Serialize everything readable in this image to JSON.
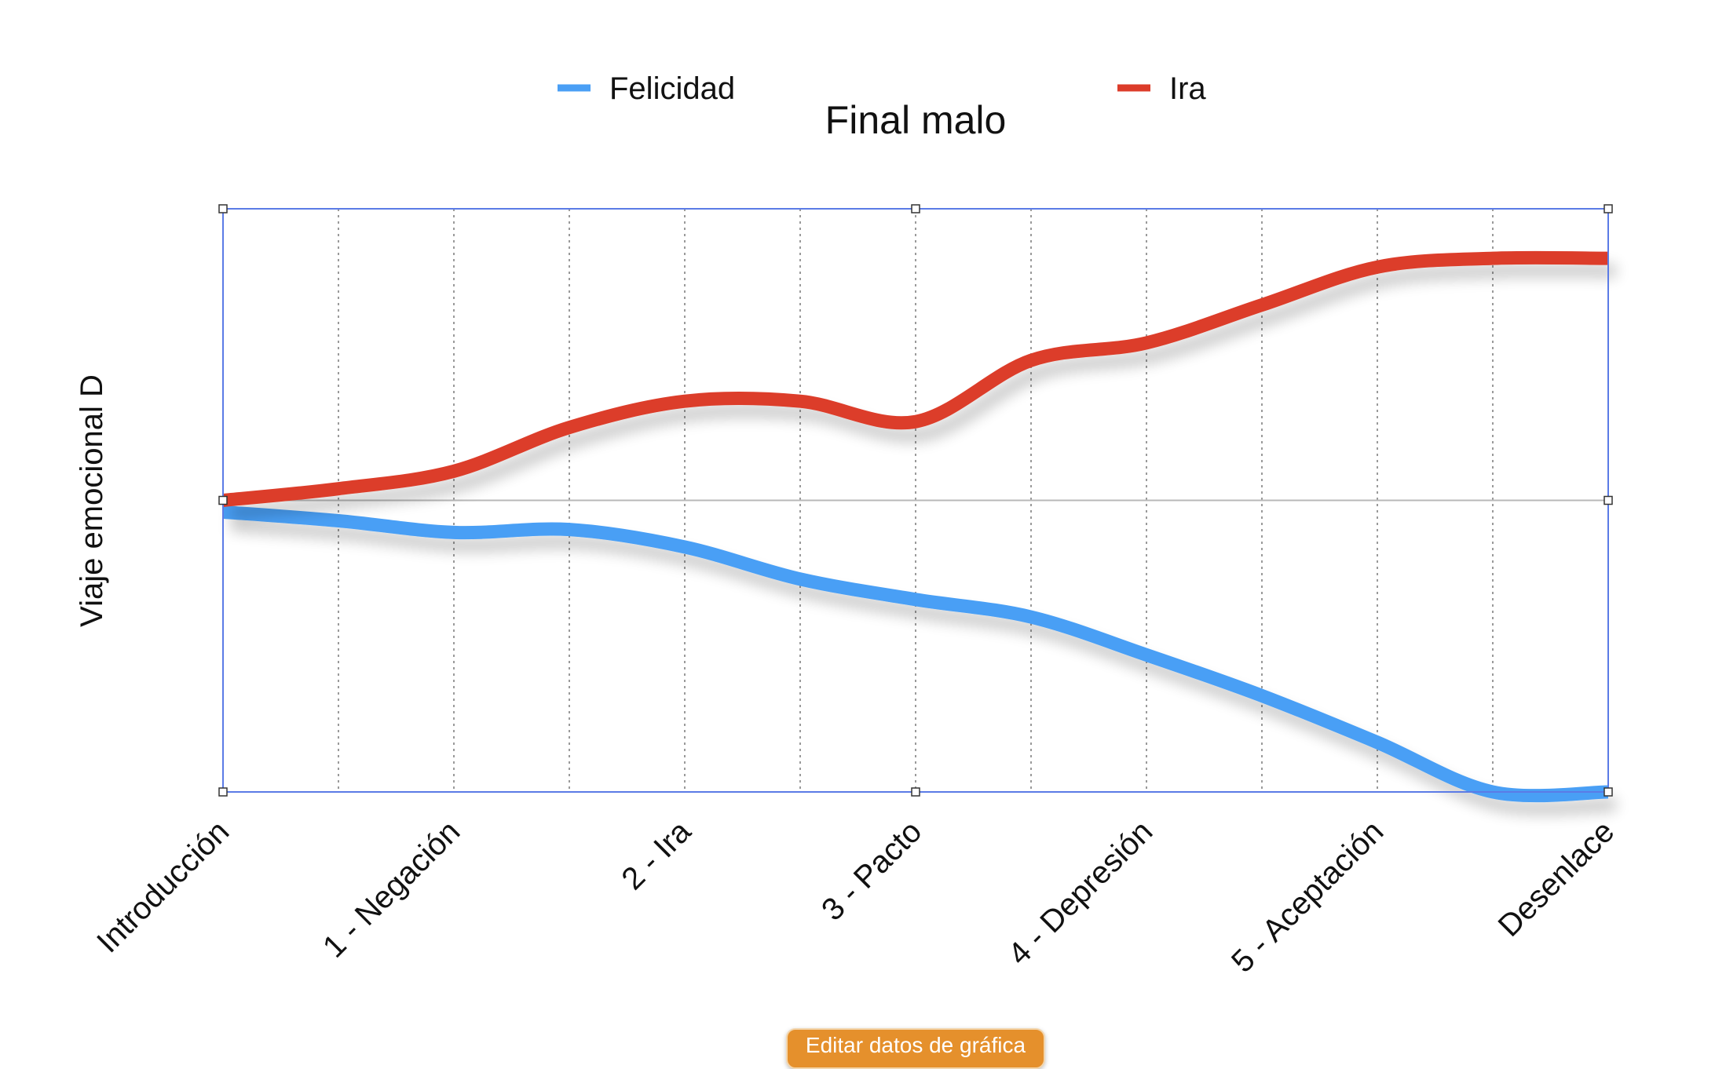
{
  "chart_data": {
    "type": "line",
    "title": "Final malo",
    "xlabel": "",
    "ylabel": "Viaje emocional D",
    "categories": [
      "Introducción",
      "",
      "1 - Negación",
      "",
      "2 - Ira",
      "",
      "3 - Pacto",
      "",
      "4 - Depresión",
      "",
      "5 - Aceptación",
      "",
      "Desenlace"
    ],
    "ylim": [
      -1,
      1
    ],
    "series": [
      {
        "name": "Felicidad",
        "color": "#4a9ff5",
        "values": [
          -0.04,
          -0.07,
          -0.11,
          -0.1,
          -0.16,
          -0.27,
          -0.34,
          -0.4,
          -0.53,
          -0.67,
          -0.83,
          -1.0,
          -1.0
        ]
      },
      {
        "name": "Ira",
        "color": "#dc3c2a",
        "values": [
          0.0,
          0.04,
          0.1,
          0.25,
          0.34,
          0.34,
          0.27,
          0.48,
          0.54,
          0.67,
          0.8,
          0.83,
          0.83
        ]
      }
    ],
    "grid": {
      "vertical": true,
      "horizontal": false,
      "zero_line": true
    },
    "legend": "top",
    "selected": true,
    "selection_color": "#5b7be6"
  },
  "toolbar": {
    "edit_label": "Editar datos de gráfica"
  }
}
